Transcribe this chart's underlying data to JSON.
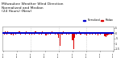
{
  "title": "Milwaukee Weather Wind Direction\nNormalized and Median\n(24 Hours) (New)",
  "title_fontsize": 3.2,
  "bg_color": "#ffffff",
  "plot_bg_color": "#ffffff",
  "grid_color": "#bbbbbb",
  "bar_color": "#dd0000",
  "median_color": "#0000cc",
  "median_value": 0.0,
  "ylim": [
    -1.65,
    0.65
  ],
  "yticks": [
    -1.5,
    -1.0,
    -0.5,
    0.0,
    0.5
  ],
  "ytick_labels": [
    "-1.5",
    "-1",
    "-.5",
    "0",
    ".5"
  ],
  "num_points": 96,
  "legend_labels": [
    "Normalized",
    "Median"
  ],
  "legend_colors": [
    "#0000cc",
    "#dd0000"
  ],
  "x_data": [
    0,
    1,
    2,
    3,
    4,
    5,
    6,
    7,
    8,
    9,
    10,
    11,
    12,
    13,
    14,
    15,
    16,
    17,
    18,
    19,
    20,
    21,
    22,
    23,
    24,
    25,
    26,
    27,
    28,
    29,
    30,
    31,
    32,
    33,
    34,
    35,
    36,
    37,
    38,
    39,
    40,
    41,
    42,
    43,
    44,
    45,
    46,
    47,
    48,
    49,
    50,
    51,
    52,
    53,
    54,
    55,
    56,
    57,
    58,
    59,
    60,
    61,
    62,
    63,
    64,
    65,
    66,
    67,
    68,
    69,
    70,
    71,
    72,
    73,
    74,
    75,
    76,
    77,
    78,
    79,
    80,
    81,
    82,
    83,
    84,
    85,
    86,
    87,
    88,
    89,
    90,
    91,
    92,
    93,
    94,
    95
  ],
  "y_data": [
    0.08,
    -0.12,
    0.15,
    -0.1,
    0.18,
    -0.08,
    0.12,
    -0.15,
    0.1,
    -0.18,
    0.08,
    -0.1,
    0.12,
    -0.08,
    0.15,
    -0.12,
    0.1,
    -0.08,
    0.12,
    -0.1,
    0.15,
    -0.08,
    0.1,
    -0.12,
    0.08,
    -0.15,
    0.12,
    -0.1,
    0.18,
    -0.08,
    0.1,
    -0.12,
    0.08,
    -0.1,
    0.15,
    -0.08,
    0.12,
    -0.18,
    0.1,
    -0.12,
    0.08,
    -0.1,
    0.15,
    -0.08,
    0.12,
    -0.1,
    0.08,
    -0.12,
    -0.4,
    -1.2,
    0.12,
    -0.1,
    0.15,
    -0.08,
    0.12,
    -0.1,
    0.08,
    -0.12,
    0.1,
    -0.08,
    -0.7,
    -1.5,
    -0.4,
    -0.15,
    0.1,
    -0.08,
    0.15,
    -0.12,
    0.1,
    -0.08,
    0.12,
    -0.1,
    -0.18,
    -0.08,
    0.1,
    -0.15,
    0.08,
    -0.1,
    0.12,
    0.08,
    -0.15,
    0.1,
    -0.18,
    0.08,
    -0.12,
    0.1,
    -0.08,
    0.12,
    -0.25,
    -0.35,
    -0.18,
    -0.12,
    -0.1,
    -0.15,
    -0.12,
    -0.08
  ],
  "xtick_positions": [
    0,
    12,
    24,
    36,
    48,
    60,
    72,
    84,
    95
  ],
  "xtick_labels": [
    "00:00",
    "03:00",
    "06:00",
    "09:00",
    "12:00",
    "15:00",
    "18:00",
    "21:00",
    "24:00"
  ]
}
